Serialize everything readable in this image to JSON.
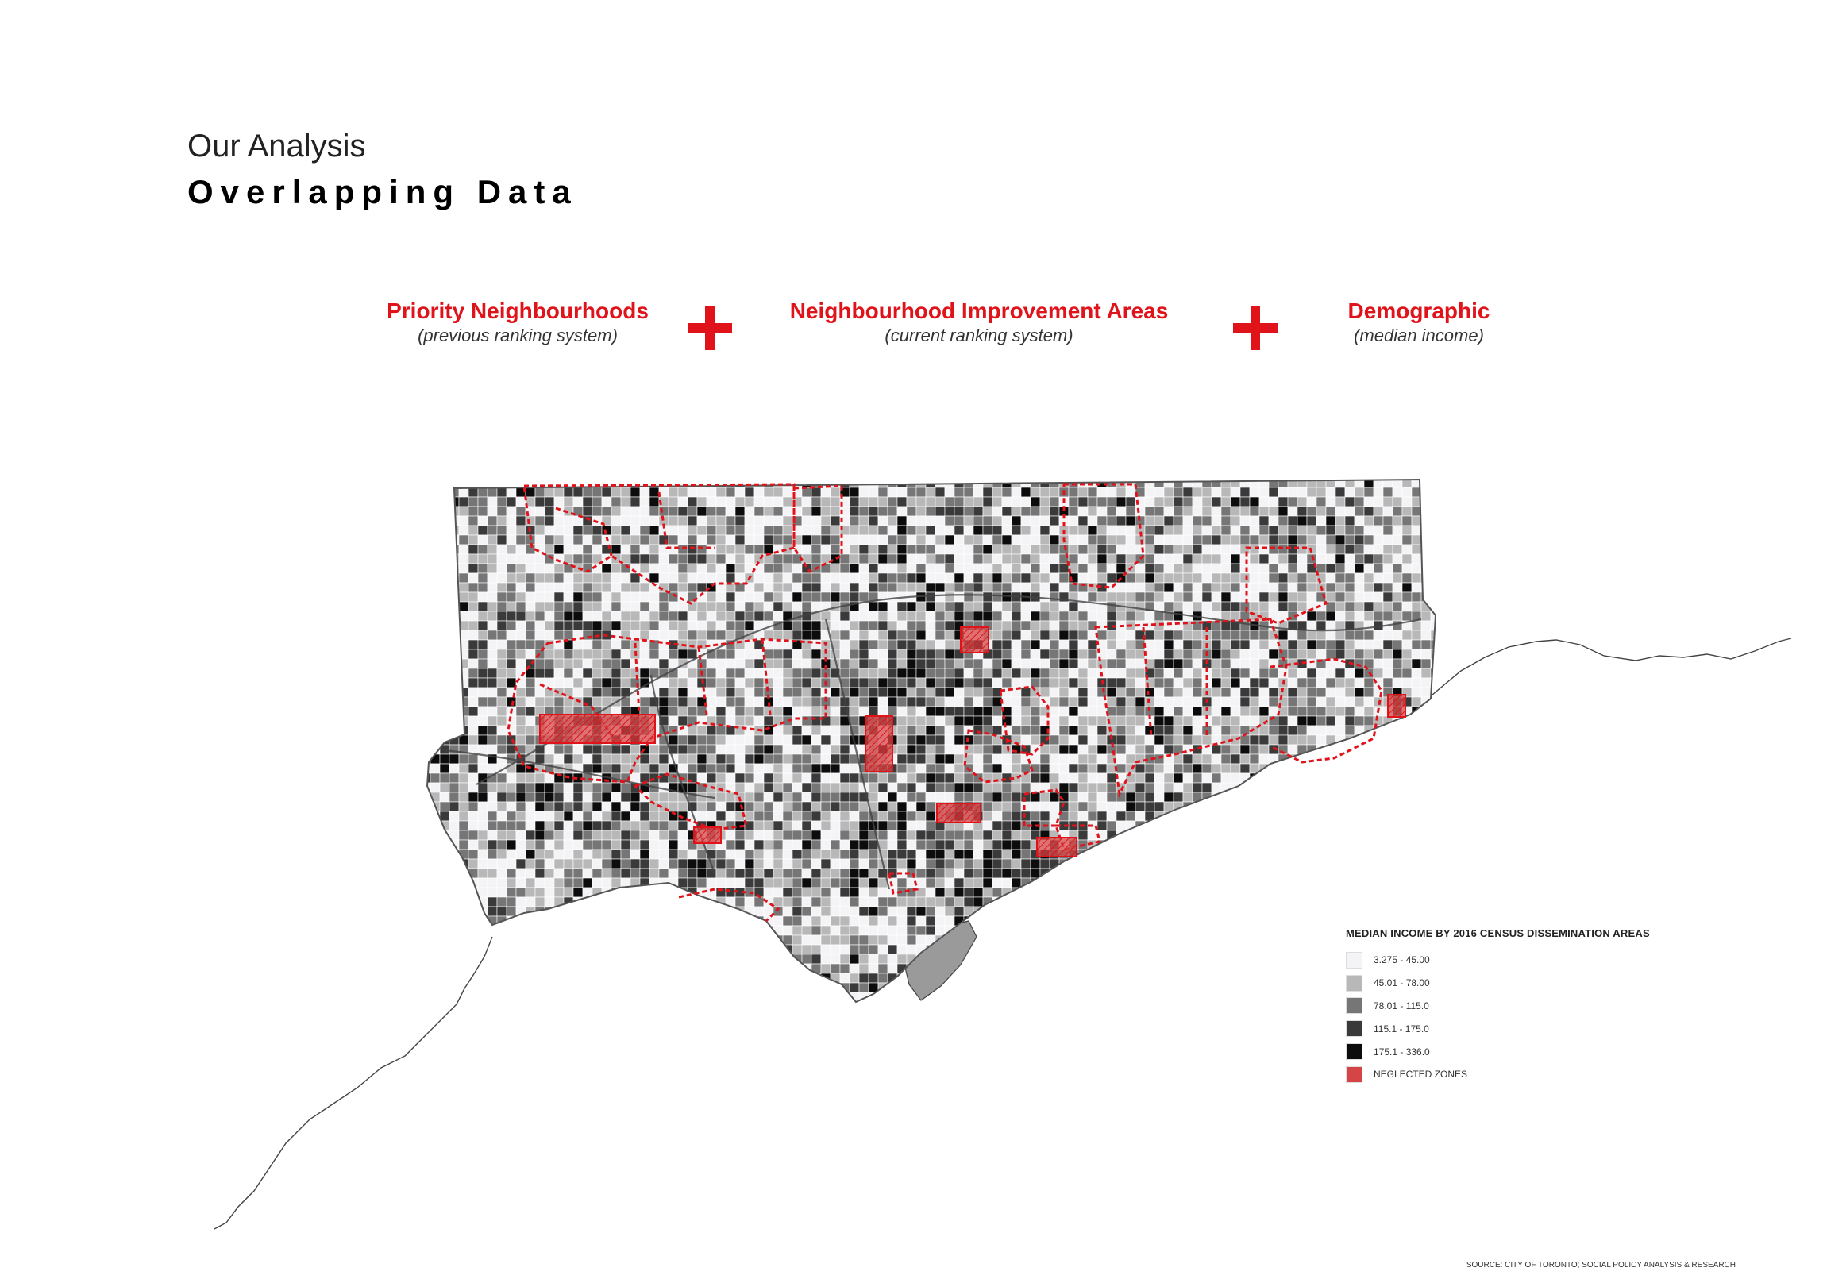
{
  "header": {
    "kicker": "Our Analysis",
    "title": "Overlapping Data"
  },
  "factors": [
    {
      "name": "Priority Neighbourhoods",
      "sub": "(previous ranking system)"
    },
    {
      "name": "Neighbourhood Improvement Areas",
      "sub": "(current ranking system)"
    },
    {
      "name": "Demographic",
      "sub": "(median income)"
    }
  ],
  "legend": {
    "title": "MEDIAN INCOME BY 2016 CENSUS DISSEMINATION AREAS",
    "items": [
      {
        "label": "3.275 - 45.00",
        "color": "#f4f4f7"
      },
      {
        "label": "45.01 - 78.00",
        "color": "#b8b8b8"
      },
      {
        "label": "78.01 - 115.0",
        "color": "#767676"
      },
      {
        "label": "115.1 - 175.0",
        "color": "#3a3a3a"
      },
      {
        "label": "175.1 - 336.0",
        "color": "#0c0c0c"
      },
      {
        "label": "NEGLECTED ZONES",
        "color": "#d64545"
      }
    ]
  },
  "source": "SOURCE: CITY OF TORONTO; SOCIAL POLICY ANALYSIS & RESEARCH",
  "colors": {
    "accent": "#e0131a",
    "neglected": "#d64545"
  }
}
